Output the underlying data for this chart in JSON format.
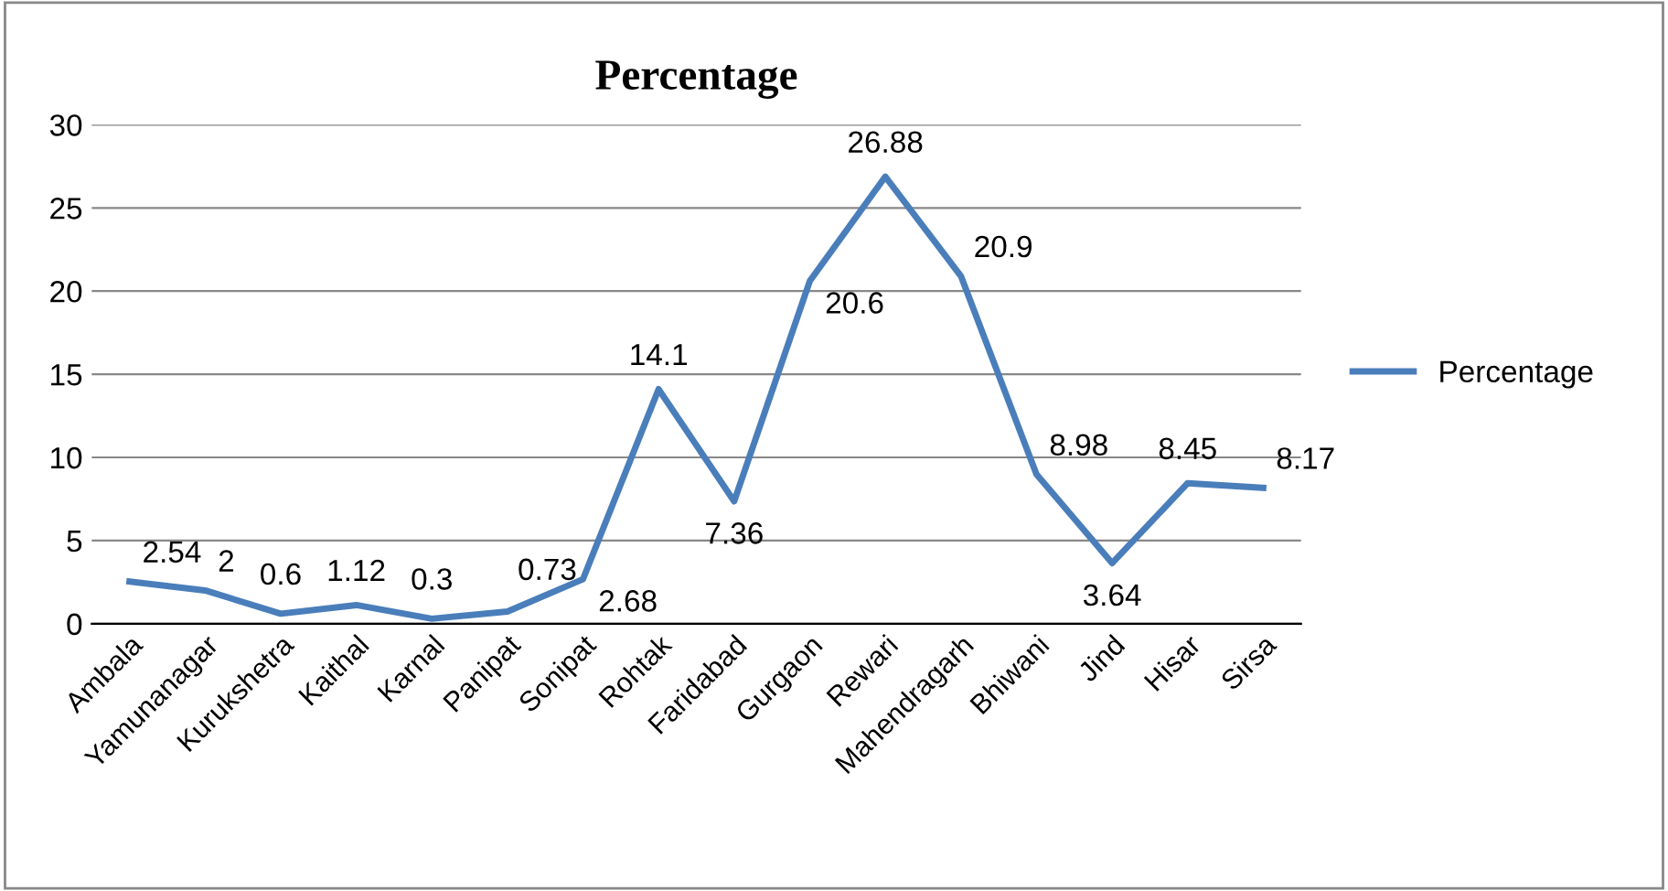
{
  "chart_data": {
    "type": "line",
    "title": "Percentage",
    "categories": [
      "Ambala",
      "Yamunanagar",
      "Kurukshetra",
      "Kaithal",
      "Karnal",
      "Panipat",
      "Sonipat",
      "Rohtak",
      "Faridabad",
      "Gurgaon",
      "Rewari",
      "Mahendragarh",
      "Bhiwani",
      "Jind",
      "Hisar",
      "Sirsa"
    ],
    "series": [
      {
        "name": "Percentage",
        "color": "#4a7ebb",
        "values": [
          2.54,
          2,
          0.6,
          1.12,
          0.3,
          0.73,
          2.68,
          14.1,
          7.36,
          20.6,
          26.88,
          20.9,
          8.98,
          3.64,
          8.45,
          8.17
        ]
      }
    ],
    "ylim": [
      0,
      30
    ],
    "yticks": [
      0,
      5,
      10,
      15,
      20,
      25,
      30
    ],
    "grid": "y",
    "legend": "right",
    "data_labels": true,
    "marker": "none",
    "line_style": "solid"
  }
}
